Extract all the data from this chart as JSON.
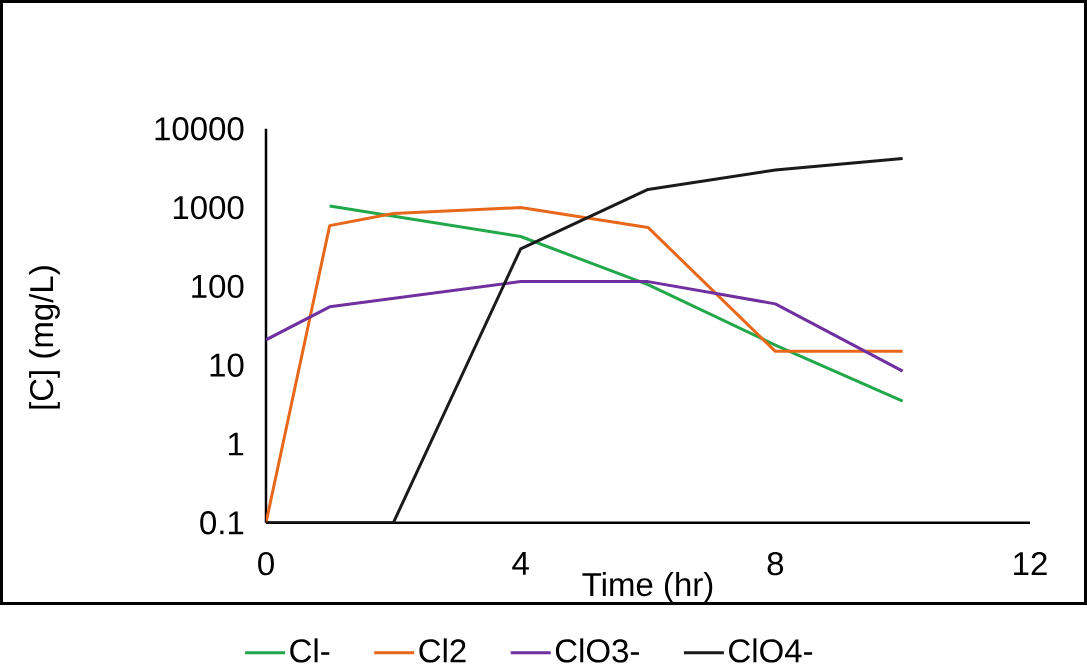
{
  "chart_data": {
    "type": "line",
    "xlabel": "Time (hr)",
    "ylabel": "[C] (mg/L)",
    "log": "y",
    "xlim": [
      0,
      12
    ],
    "xticks": [
      0,
      4,
      8,
      12
    ],
    "ylim": [
      0.1,
      10000
    ],
    "yticks": [
      0.1,
      1,
      10,
      100,
      1000,
      10000
    ],
    "legend": "bottom",
    "grid": false,
    "line_style": "solid",
    "series": [
      {
        "name": "Cl-",
        "color": "#22a84a",
        "x": [
          1,
          4,
          6,
          8,
          10
        ],
        "values": [
          1050,
          430,
          105,
          18,
          3.5
        ]
      },
      {
        "name": "Cl2",
        "color": "#e8681b",
        "x": [
          0,
          1,
          2,
          4,
          6,
          8,
          10
        ],
        "values": [
          0.1,
          590,
          840,
          1000,
          560,
          15,
          15
        ]
      },
      {
        "name": "ClO3-",
        "color": "#7030a0",
        "x": [
          0,
          1,
          4,
          6,
          8,
          10
        ],
        "values": [
          21,
          55,
          115,
          115,
          60,
          8.4
        ]
      },
      {
        "name": "ClO4-",
        "color": "#1a1a1a",
        "x": [
          0,
          2,
          4,
          6,
          8,
          10
        ],
        "values": [
          0.1,
          0.1,
          300,
          1700,
          3000,
          4200
        ]
      }
    ]
  }
}
